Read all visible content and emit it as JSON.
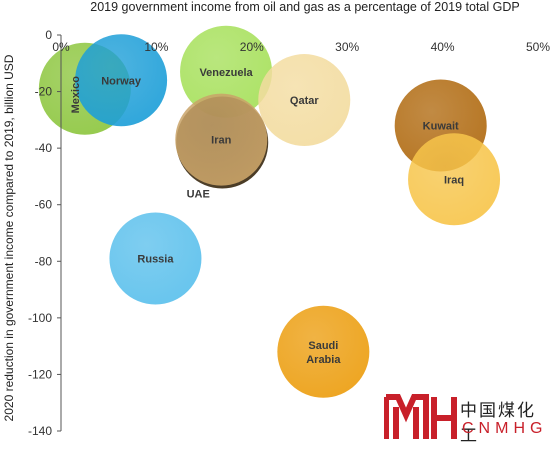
{
  "chart_data": {
    "type": "bubble",
    "title": "2019 government income from oil and gas as a percentage of 2019 total GDP",
    "xlabel": "",
    "ylabel": "2020 reduction in government income compared to 2019, billion USD",
    "xlim": [
      0,
      50
    ],
    "ylim": [
      -140,
      0
    ],
    "x_ticks": [
      "0%",
      "10%",
      "20%",
      "30%",
      "40%",
      "50%"
    ],
    "y_ticks": [
      "0",
      "-20",
      "-40",
      "-60",
      "-80",
      "-100",
      "-120",
      "-140"
    ],
    "grid": false,
    "points": [
      {
        "label": "Mexico",
        "x": 2.5,
        "y": -19,
        "color": "#8dc63f",
        "label_rotated": true
      },
      {
        "label": "Norway",
        "x": 6.3,
        "y": -16,
        "color": "#1e9fd8"
      },
      {
        "label": "Venezuela",
        "x": 17.3,
        "y": -13,
        "color": "#a6e05a"
      },
      {
        "label": "Qatar",
        "x": 25.5,
        "y": -23,
        "color": "#f3dca0"
      },
      {
        "label": "Iran",
        "x": 16.8,
        "y": -37,
        "color": "#c9a368"
      },
      {
        "label": "UAE",
        "x": 16.9,
        "y": -38,
        "color": "#3a2a12"
      },
      {
        "label": "Kuwait",
        "x": 39.8,
        "y": -32,
        "color": "#b06a10"
      },
      {
        "label": "Iraq",
        "x": 41.2,
        "y": -51,
        "color": "#f7c54b"
      },
      {
        "label": "Russia",
        "x": 9.9,
        "y": -79,
        "color": "#5bc0ec"
      },
      {
        "label": "Saudi Arabia",
        "x": 27.5,
        "y": -112,
        "color": "#ec9e10"
      }
    ]
  },
  "watermark": {
    "cn": "中国煤化工",
    "en": "CNMHG"
  }
}
